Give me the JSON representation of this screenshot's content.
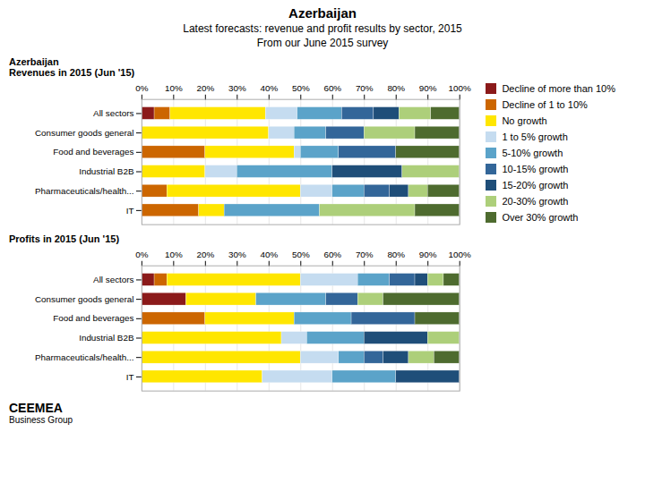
{
  "title": "Azerbaijan",
  "subtitle": [
    "Latest forecasts: revenue and profit results by sector, 2015",
    "From our June 2015 survey"
  ],
  "annotations": [
    "CEE",
    "MEA",
    "Business Group"
  ],
  "chart_data": [
    {
      "type": "bar",
      "orientation": "horizontal",
      "stacked": true,
      "title": "Revenues in 2015 (Jun '15)",
      "annotations": [
        "Azerbaijan"
      ],
      "categories": [
        "All sectors",
        "Consumer goods general",
        "Food and beverages",
        "Industrial B2B",
        "Pharmaceuticals/health...",
        "IT"
      ],
      "series": [
        {
          "name": "Decline of more than 10%",
          "color": "#8B1A1A",
          "values": [
            4,
            0,
            0,
            0,
            0,
            0
          ]
        },
        {
          "name": "Decline of 1 to 10%",
          "color": "#CC6600",
          "values": [
            5,
            0,
            20,
            0,
            8,
            18
          ]
        },
        {
          "name": "No growth",
          "color": "#FFE600",
          "values": [
            30,
            40,
            28,
            20,
            42,
            8
          ]
        },
        {
          "name": "1 to 5% growth",
          "color": "#C5DCF0",
          "values": [
            10,
            8,
            2,
            10,
            10,
            0
          ]
        },
        {
          "name": "5-10% growth",
          "color": "#5BA3C9",
          "values": [
            14,
            10,
            12,
            30,
            10,
            30
          ]
        },
        {
          "name": "10-15% growth",
          "color": "#336699",
          "values": [
            10,
            12,
            18,
            0,
            8,
            0
          ]
        },
        {
          "name": "15-20% growth",
          "color": "#1F4E79",
          "values": [
            8,
            0,
            0,
            22,
            6,
            0
          ]
        },
        {
          "name": "20-30% growth",
          "color": "#ADCF7A",
          "values": [
            10,
            16,
            0,
            18,
            6,
            30
          ]
        },
        {
          "name": "Over 30% growth",
          "color": "#4E6B2F",
          "values": [
            9,
            14,
            20,
            0,
            10,
            14
          ]
        }
      ],
      "xlim": [
        0,
        100
      ],
      "xticks": [
        {
          "value": 0,
          "label": "0%"
        },
        {
          "value": 10,
          "label": "10%"
        },
        {
          "value": 20,
          "label": "20%"
        },
        {
          "value": 30,
          "label": "30%"
        },
        {
          "value": 40,
          "label": "40%"
        },
        {
          "value": 50,
          "label": "50%"
        },
        {
          "value": 60,
          "label": "60%"
        },
        {
          "value": 70,
          "label": "70%"
        },
        {
          "value": 80,
          "label": "80%"
        },
        {
          "value": 90,
          "label": "90%"
        },
        {
          "value": 100,
          "label": "100%"
        }
      ],
      "grid": true,
      "legend": "right"
    },
    {
      "type": "bar",
      "orientation": "horizontal",
      "stacked": true,
      "title": "Profits in 2015 (Jun '15)",
      "categories": [
        "All sectors",
        "Consumer goods general",
        "Food and beverages",
        "Industrial B2B",
        "Pharmaceuticals/health...",
        "IT"
      ],
      "series": [
        {
          "name": "Decline of more than 10%",
          "color": "#8B1A1A",
          "values": [
            4,
            14,
            0,
            0,
            0,
            0
          ]
        },
        {
          "name": "Decline of 1 to 10%",
          "color": "#CC6600",
          "values": [
            4,
            0,
            20,
            0,
            0,
            0
          ]
        },
        {
          "name": "No growth",
          "color": "#FFE600",
          "values": [
            42,
            22,
            28,
            44,
            50,
            38
          ]
        },
        {
          "name": "1 to 5% growth",
          "color": "#C5DCF0",
          "values": [
            18,
            0,
            0,
            8,
            12,
            22
          ]
        },
        {
          "name": "5-10% growth",
          "color": "#5BA3C9",
          "values": [
            10,
            22,
            18,
            18,
            8,
            20
          ]
        },
        {
          "name": "10-15% growth",
          "color": "#336699",
          "values": [
            8,
            10,
            20,
            0,
            6,
            0
          ]
        },
        {
          "name": "15-20% growth",
          "color": "#1F4E79",
          "values": [
            4,
            0,
            0,
            20,
            8,
            20
          ]
        },
        {
          "name": "20-30% growth",
          "color": "#ADCF7A",
          "values": [
            5,
            8,
            0,
            10,
            8,
            0
          ]
        },
        {
          "name": "Over 30% growth",
          "color": "#4E6B2F",
          "values": [
            5,
            24,
            14,
            0,
            8,
            0
          ]
        }
      ],
      "xlim": [
        0,
        100
      ],
      "xticks": [
        {
          "value": 0,
          "label": "0%"
        },
        {
          "value": 10,
          "label": "10%"
        },
        {
          "value": 20,
          "label": "20%"
        },
        {
          "value": 30,
          "label": "30%"
        },
        {
          "value": 40,
          "label": "40%"
        },
        {
          "value": 50,
          "label": "50%"
        },
        {
          "value": 60,
          "label": "60%"
        },
        {
          "value": 70,
          "label": "70%"
        },
        {
          "value": 80,
          "label": "80%"
        },
        {
          "value": 90,
          "label": "90%"
        },
        {
          "value": 100,
          "label": "100%"
        }
      ],
      "grid": true
    }
  ]
}
